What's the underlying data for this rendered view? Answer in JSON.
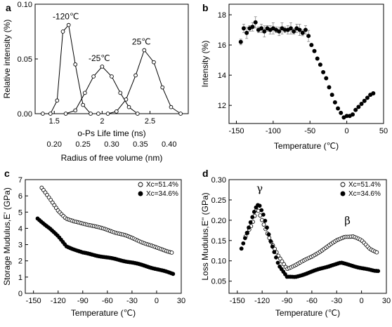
{
  "chart_data": [
    {
      "panel": "a",
      "type": "line",
      "xlabel": "o-Ps Life time (ns)",
      "x2label": "Radius of free volume (nm)",
      "ylabel": "Relative intensity (%)",
      "xlim": [
        1.3,
        2.9
      ],
      "ylim": [
        0,
        0.1
      ],
      "x_ticks": [
        1.5,
        2.0,
        2.5
      ],
      "y_ticks": [
        0.0,
        0.05,
        0.1
      ],
      "y_tick_labels": [
        "0.00",
        "0.05",
        "0.10"
      ],
      "x2_tick_labels": [
        "0.20",
        "0.25",
        "0.30",
        "0.35",
        "0.40"
      ],
      "series": [
        {
          "name": "-120℃",
          "x": [
            1.38,
            1.46,
            1.53,
            1.59,
            1.65,
            1.72,
            1.8,
            1.88,
            1.96
          ],
          "y": [
            0.0,
            0.0,
            0.012,
            0.075,
            0.081,
            0.045,
            0.008,
            0.0,
            0.0
          ]
        },
        {
          "name": "-25℃",
          "x": [
            1.62,
            1.72,
            1.82,
            1.91,
            2.0,
            2.1,
            2.19,
            2.28,
            2.37
          ],
          "y": [
            0.0,
            0.003,
            0.019,
            0.034,
            0.043,
            0.034,
            0.019,
            0.006,
            0.0
          ]
        },
        {
          "name": "25℃",
          "x": [
            2.06,
            2.15,
            2.25,
            2.35,
            2.44,
            2.54,
            2.63,
            2.72,
            2.82
          ],
          "y": [
            0.0,
            0.002,
            0.013,
            0.035,
            0.058,
            0.047,
            0.024,
            0.006,
            0.0
          ]
        }
      ]
    },
    {
      "panel": "b",
      "type": "scatter",
      "xlabel": "Temperature (℃)",
      "ylabel": "Intensity (%)",
      "xlim": [
        -160,
        50
      ],
      "ylim": [
        10.8,
        18.7
      ],
      "x_ticks": [
        -150,
        -100,
        -50,
        0,
        50
      ],
      "y_ticks": [
        12,
        14,
        16,
        18
      ],
      "series": [
        {
          "name": "",
          "x": [
            -144,
            -140,
            -136,
            -132,
            -128,
            -124,
            -120,
            -116,
            -112,
            -108,
            -104,
            -100,
            -96,
            -92,
            -88,
            -84,
            -80,
            -76,
            -72,
            -68,
            -64,
            -60,
            -56,
            -52,
            -48,
            -44,
            -40,
            -36,
            -32,
            -28,
            -24,
            -20,
            -16,
            -12,
            -8,
            -4,
            0,
            4,
            8,
            12,
            16,
            20,
            24,
            28,
            32,
            36
          ],
          "y": [
            16.2,
            17.1,
            16.8,
            17.1,
            17.2,
            17.5,
            17.0,
            17.1,
            16.9,
            17.1,
            17.0,
            17.1,
            17.0,
            16.9,
            17.1,
            17.0,
            17.0,
            17.1,
            16.9,
            17.1,
            17.0,
            16.8,
            17.0,
            16.6,
            16.0,
            15.6,
            15.1,
            14.7,
            14.2,
            13.8,
            13.2,
            12.7,
            12.2,
            11.8,
            11.5,
            11.2,
            11.3,
            11.3,
            11.4,
            11.7,
            11.9,
            12.1,
            12.3,
            12.5,
            12.7,
            12.8
          ],
          "error_bar_count": 24
        }
      ]
    },
    {
      "panel": "c",
      "type": "scatter",
      "xlabel": "Temperature (℃)",
      "ylabel": "Storage Mudulus,E' (GPa)",
      "xlim": [
        -160,
        30
      ],
      "ylim": [
        0,
        7
      ],
      "x_ticks": [
        -150,
        -120,
        -90,
        -60,
        -30,
        0,
        30
      ],
      "y_ticks": [
        0,
        1,
        2,
        3,
        4,
        5,
        6,
        7
      ],
      "legend": "top-right",
      "series": [
        {
          "name": "Xc=51.4%",
          "marker": "open",
          "x": [
            -140,
            20
          ],
          "y": [
            6.5,
            2.5
          ],
          "knots_x": [
            -140,
            -130,
            -120,
            -110,
            -100,
            -80,
            -60,
            -40,
            -20,
            0,
            20
          ],
          "knots_y": [
            6.5,
            5.8,
            5.1,
            4.6,
            4.4,
            4.2,
            3.9,
            3.6,
            3.2,
            2.8,
            2.5
          ]
        },
        {
          "name": "Xc=34.6%",
          "marker": "filled",
          "x": [
            -145,
            20
          ],
          "y": [
            4.6,
            1.2
          ],
          "knots_x": [
            -145,
            -130,
            -120,
            -110,
            -100,
            -90,
            -60,
            -30,
            0,
            20
          ],
          "knots_y": [
            4.6,
            4.0,
            3.5,
            2.9,
            2.7,
            2.5,
            2.2,
            1.9,
            1.5,
            1.2
          ]
        }
      ]
    },
    {
      "panel": "d",
      "type": "scatter",
      "xlabel": "Temperature (℃)",
      "ylabel": "Loss Mudulus,E'' (GPa)",
      "xlim": [
        -160,
        30
      ],
      "ylim": [
        0.02,
        0.3
      ],
      "x_ticks": [
        -150,
        -120,
        -90,
        -60,
        -30,
        0,
        30
      ],
      "y_ticks": [
        0.05,
        0.1,
        0.15,
        0.2,
        0.25,
        0.3
      ],
      "y_tick_labels": [
        "0.05",
        "0.10",
        "0.15",
        "0.20",
        "0.25",
        "0.30"
      ],
      "legend": "top-right",
      "annotations": [
        "γ",
        "β"
      ],
      "series": [
        {
          "name": "Xc=51.4%",
          "marker": "open",
          "knots_x": [
            -140,
            -132,
            -126,
            -120,
            -110,
            -100,
            -90,
            -80,
            -70,
            -60,
            -45,
            -30,
            -20,
            -10,
            0,
            10,
            20
          ],
          "knots_y": [
            0.16,
            0.19,
            0.23,
            0.2,
            0.15,
            0.11,
            0.08,
            0.09,
            0.1,
            0.11,
            0.13,
            0.15,
            0.16,
            0.16,
            0.15,
            0.13,
            0.12
          ]
        },
        {
          "name": "Xc=34.6%",
          "marker": "filled",
          "knots_x": [
            -145,
            -135,
            -128,
            -124,
            -118,
            -110,
            -100,
            -90,
            -80,
            -65,
            -50,
            -35,
            -25,
            -15,
            -5,
            5,
            15,
            20
          ],
          "knots_y": [
            0.13,
            0.19,
            0.23,
            0.24,
            0.21,
            0.15,
            0.09,
            0.06,
            0.06,
            0.07,
            0.08,
            0.09,
            0.095,
            0.09,
            0.085,
            0.08,
            0.075,
            0.075
          ]
        }
      ]
    }
  ],
  "panel_letters": [
    "a",
    "b",
    "c",
    "d"
  ],
  "legend_c": [
    "Xc=51.4%",
    "Xc=34.6%"
  ],
  "legend_d": [
    "Xc=51.4%",
    "Xc=34.6%"
  ]
}
